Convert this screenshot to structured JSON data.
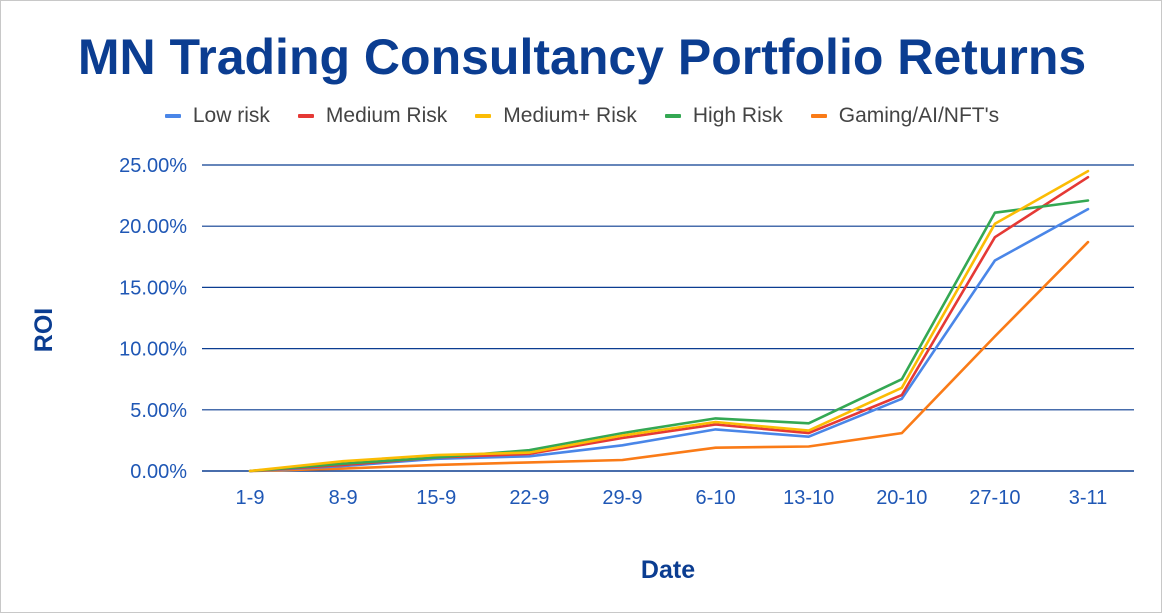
{
  "chart_data": {
    "type": "line",
    "title": "MN Trading Consultancy Portfolio Returns",
    "xlabel": "Date",
    "ylabel": "ROI",
    "categories": [
      "1-9",
      "8-9",
      "15-9",
      "22-9",
      "29-9",
      "6-10",
      "13-10",
      "20-10",
      "27-10",
      "3-11"
    ],
    "y_ticks": [
      "0.00%",
      "5.00%",
      "10.00%",
      "15.00%",
      "20.00%",
      "25.00%"
    ],
    "ylim": [
      0,
      25
    ],
    "grid": true,
    "legend_position": "top",
    "series": [
      {
        "name": "Low risk",
        "color": "#4a86e8",
        "values": [
          0.0,
          0.4,
          1.0,
          1.2,
          2.1,
          3.4,
          2.8,
          5.9,
          17.2,
          21.4
        ]
      },
      {
        "name": "Medium Risk",
        "color": "#e53935",
        "values": [
          0.0,
          0.5,
          1.1,
          1.4,
          2.7,
          3.8,
          3.1,
          6.2,
          19.1,
          24.0
        ]
      },
      {
        "name": "Medium+ Risk",
        "color": "#fbbc04",
        "values": [
          0.0,
          0.8,
          1.3,
          1.5,
          2.9,
          4.0,
          3.3,
          6.8,
          20.2,
          24.5
        ]
      },
      {
        "name": "High Risk",
        "color": "#34a853",
        "values": [
          0.0,
          0.6,
          1.1,
          1.7,
          3.1,
          4.3,
          3.9,
          7.5,
          21.1,
          22.1
        ]
      },
      {
        "name": "Gaming/AI/NFT's",
        "color": "#fa7b17",
        "values": [
          0.0,
          0.2,
          0.5,
          0.7,
          0.9,
          1.9,
          2.0,
          3.1,
          11.0,
          18.7
        ]
      }
    ]
  },
  "colors": {
    "title": "#0b3d91",
    "tick": "#1f57b5",
    "grid": "#0b3d91"
  }
}
